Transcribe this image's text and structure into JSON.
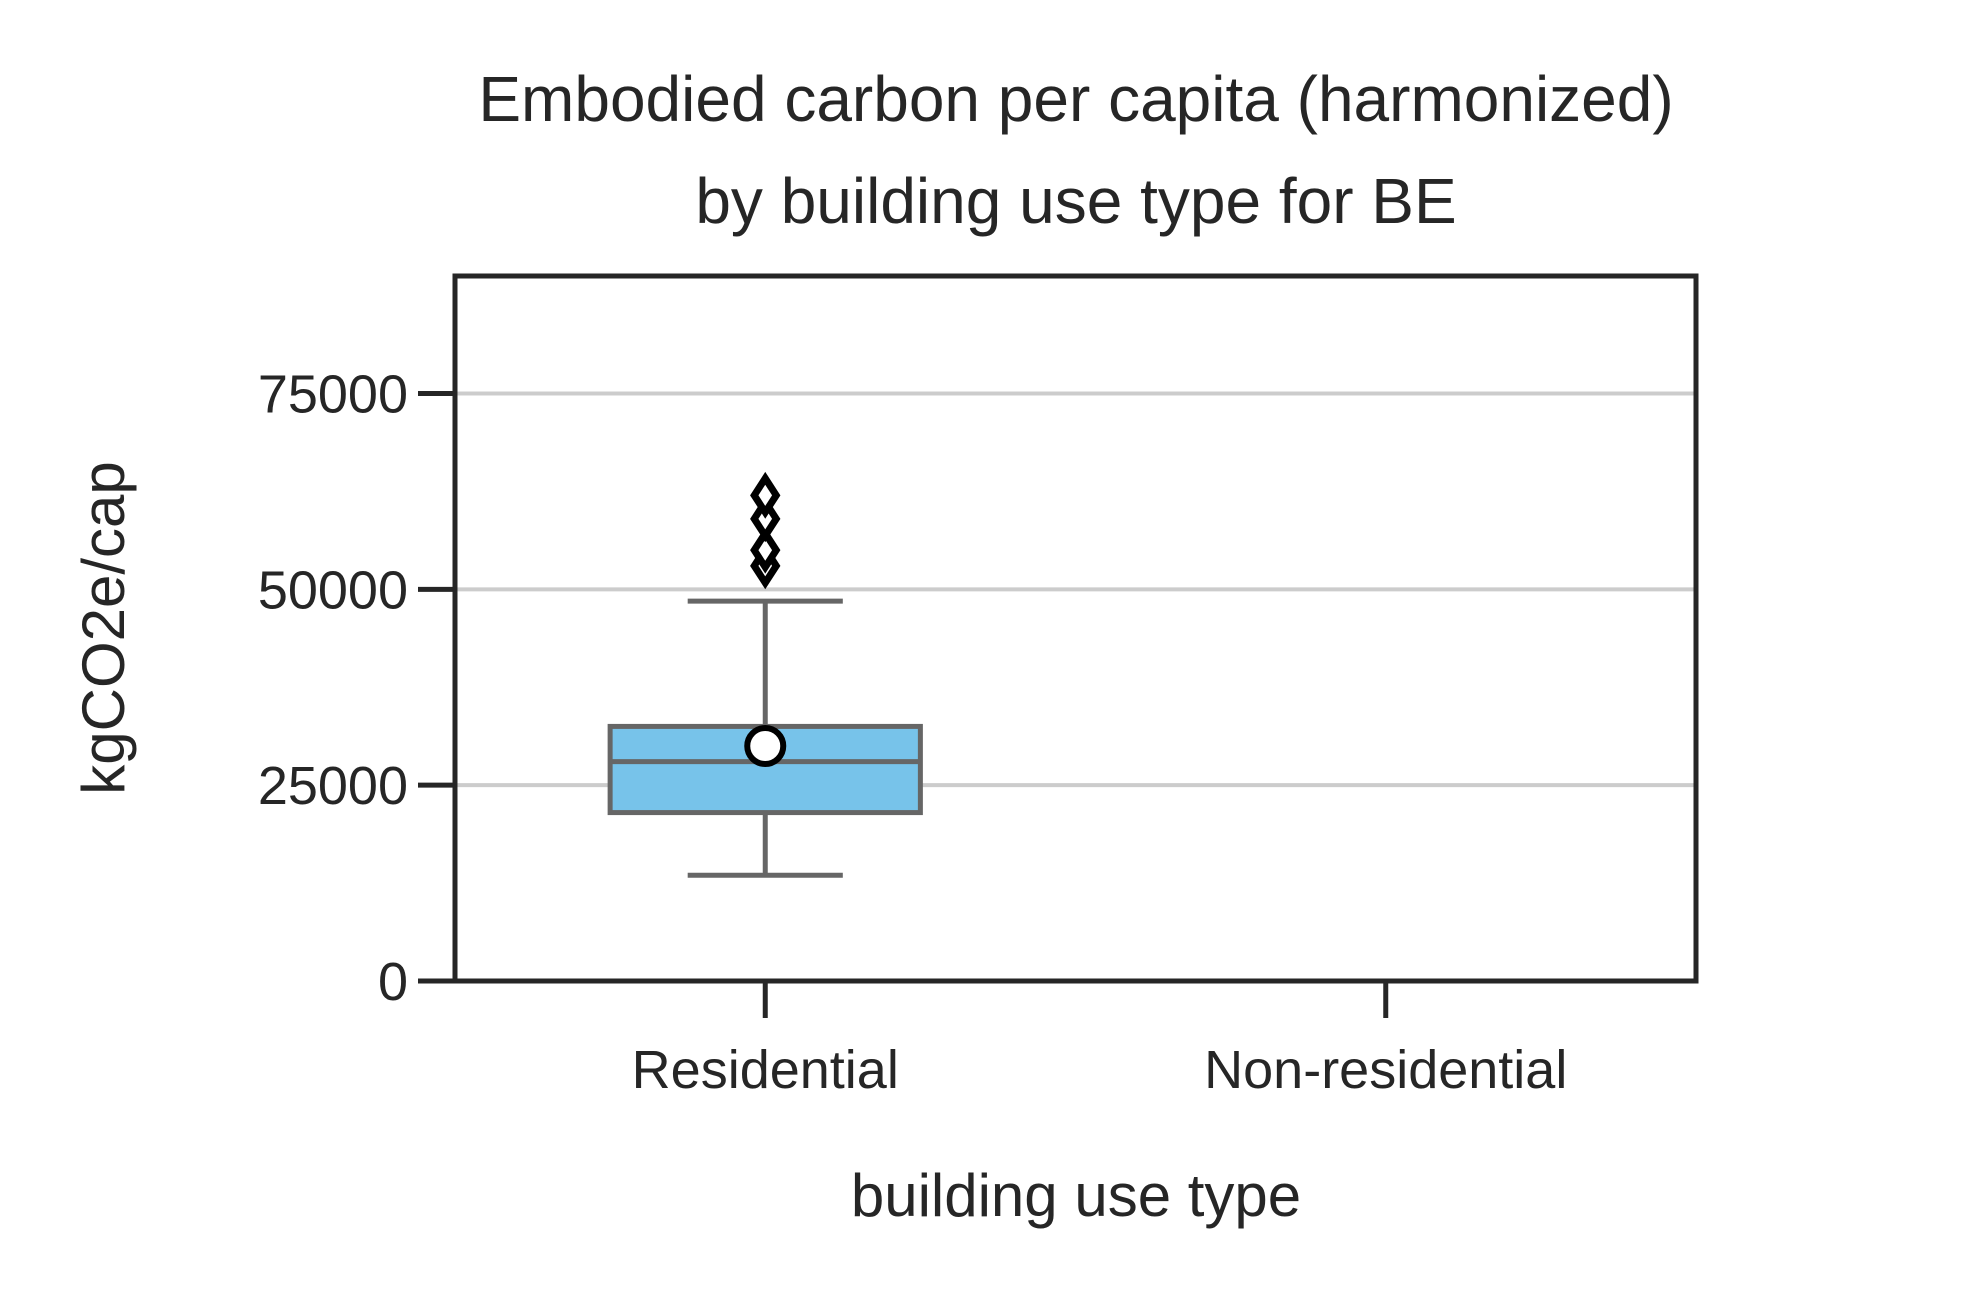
{
  "chart_data": {
    "type": "box",
    "title_lines": [
      "Embodied carbon per capita (harmonized)",
      "by building use type for BE"
    ],
    "xlabel": "building use type",
    "ylabel": "kgCO2e/cap",
    "categories": [
      "Residential",
      "Non-residential"
    ],
    "ylim": [
      0,
      90000
    ],
    "yticks": [
      0,
      25000,
      50000,
      75000
    ],
    "ytick_labels": [
      "0",
      "25000",
      "50000",
      "75000"
    ],
    "grid": "horizontal",
    "boxes": [
      {
        "category": "Residential",
        "whisker_low": 13500,
        "q1": 21500,
        "median": 28000,
        "q3": 32500,
        "whisker_high": 48500,
        "mean": 30000,
        "outliers": [
          53000,
          55000,
          59000,
          62000
        ]
      }
    ],
    "colors": {
      "box_fill": "#77c3ea",
      "box_edge": "#666666",
      "grid": "#cccccc",
      "axis": "#262626",
      "outlier": "#000000",
      "mean_marker_fill": "#ffffff",
      "mean_marker_edge": "#000000"
    }
  }
}
